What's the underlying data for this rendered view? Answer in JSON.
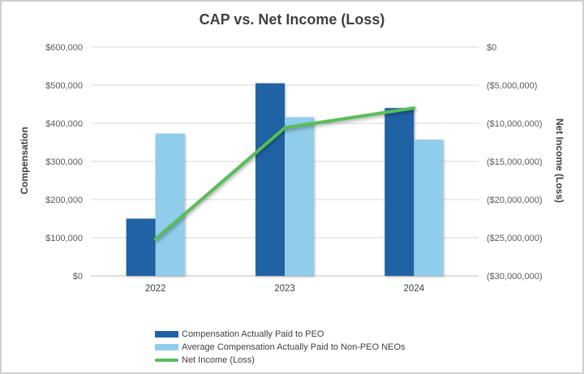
{
  "title": "CAP vs. Net Income (Loss)",
  "chart_data": {
    "type": "bar",
    "subtype": "grouped-bars-with-line-overlay",
    "categories": [
      "2022",
      "2023",
      "2024"
    ],
    "series": [
      {
        "name": "Compensation Actually Paid to PEO",
        "type": "bar",
        "axis": "left",
        "color": "#2063A5",
        "values": [
          150000,
          505000,
          440000
        ]
      },
      {
        "name": "Average Compensation Actually Paid to Non-PEO NEOs",
        "type": "bar",
        "axis": "left",
        "color": "#8FCDEB",
        "values": [
          373000,
          416000,
          357000
        ]
      },
      {
        "name": "Net Income (Loss)",
        "type": "line",
        "axis": "right",
        "color": "#57BE57",
        "values": [
          -25200000,
          -10600000,
          -8000000
        ]
      }
    ],
    "left_axis": {
      "title": "Compensation",
      "min": 0,
      "max": 600000,
      "tick_step": 100000,
      "tick_labels_bottom_to_top": [
        "$0",
        "$100,000",
        "$200,000",
        "$300,000",
        "$400,000",
        "$500,000",
        "$600,000"
      ]
    },
    "right_axis": {
      "title": "Net Income (Loss)",
      "min": -30000000,
      "max": 0,
      "tick_step": 5000000,
      "tick_labels_top_to_bottom": [
        "$0",
        "($5,000,000)",
        "($10,000,000)",
        "($15,000,000)",
        "($20,000,000)",
        "($25,000,000)",
        "($30,000,000)"
      ]
    },
    "grid": true,
    "legend_position": "bottom-left"
  },
  "colors": {
    "grid": "#D9D9D9",
    "axis_line": "#BFBFBF",
    "tick_text": "#595959",
    "category_text": "#404040",
    "title_text": "#404040",
    "frame_border": "#D0CECE",
    "background": "#FFFFFF"
  }
}
